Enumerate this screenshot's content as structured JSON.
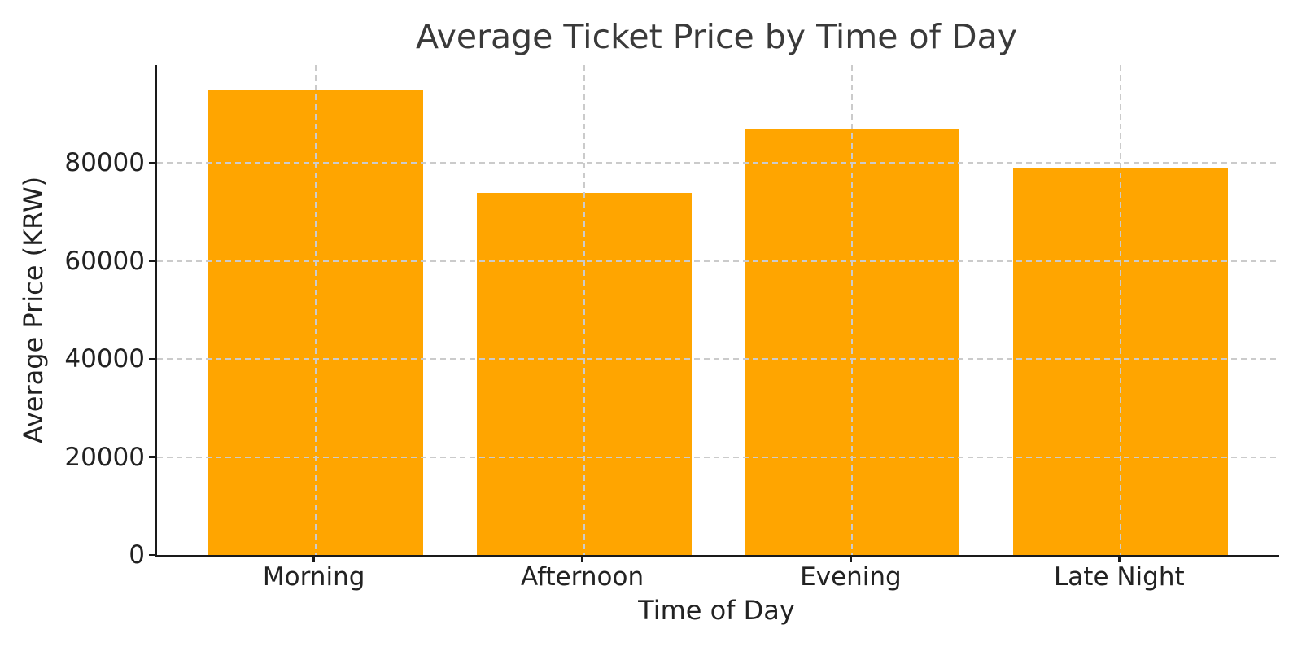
{
  "chart_data": {
    "type": "bar",
    "title": "Average Ticket Price by Time of Day",
    "xlabel": "Time of Day",
    "ylabel": "Average Price (KRW)",
    "categories": [
      "Morning",
      "Afternoon",
      "Evening",
      "Late Night"
    ],
    "values": [
      95000,
      74000,
      87000,
      79000
    ],
    "yticks": [
      0,
      20000,
      40000,
      60000,
      80000
    ],
    "ylim": [
      0,
      100000
    ],
    "bar_color": "#FFA500",
    "grid": "dashed",
    "grid_color": "#cbcbcb",
    "axis_color": "#1a1a1a",
    "text_color": "#222222",
    "title_color": "#3a3a3a",
    "legend": null
  }
}
